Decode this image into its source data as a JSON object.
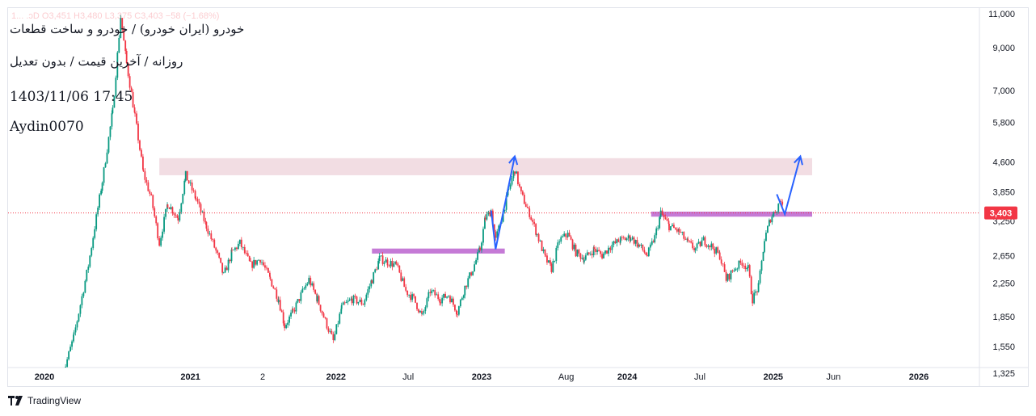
{
  "overlay": {
    "ohlc": "1... .ɔD O3,451 H3,480 L3,375 C3,403 −58 (−1.68%)",
    "title_line1": "خودرو (ایران خودرو) / خودرو و ساخت قطعات",
    "title_line2": "روزانه / آخرین قیمت / بدون تعدیل",
    "date_stamp": "1403/11/06 17:45",
    "author": "Aydin0070"
  },
  "branding": {
    "label": "TradingView"
  },
  "chart_data": {
    "type": "candlestick",
    "title": "خودرو (ایران خودرو) / خودرو و ساخت قطعات",
    "price_scale": "log",
    "y_ticks": [
      11000,
      9000,
      7000,
      5800,
      4600,
      3850,
      3250,
      2650,
      2250,
      1850,
      1550,
      1325
    ],
    "y_tick_labels": [
      "11,000",
      "9,000",
      "7,000",
      "5,800",
      "4,600",
      "3,850",
      "3,250",
      "2,650",
      "2,250",
      "1,850",
      "1,550",
      "1,325"
    ],
    "x_ticks": [
      {
        "label": "2020",
        "bold": true,
        "date": "2020-01-01"
      },
      {
        "label": "2021",
        "bold": true,
        "date": "2021-01-01"
      },
      {
        "label": "2",
        "bold": false,
        "date": "2021-07-01"
      },
      {
        "label": "2022",
        "bold": true,
        "date": "2022-01-01"
      },
      {
        "label": "Jul",
        "bold": false,
        "date": "2022-07-01"
      },
      {
        "label": "2023",
        "bold": true,
        "date": "2023-01-01"
      },
      {
        "label": "Aug",
        "bold": false,
        "date": "2023-08-01"
      },
      {
        "label": "2024",
        "bold": true,
        "date": "2024-01-01"
      },
      {
        "label": "Jul",
        "bold": false,
        "date": "2024-07-01"
      },
      {
        "label": "2025",
        "bold": true,
        "date": "2025-01-01"
      },
      {
        "label": "Jun",
        "bold": false,
        "date": "2025-06-01"
      },
      {
        "label": "2026",
        "bold": true,
        "date": "2026-01-01"
      }
    ],
    "last_price": 3403,
    "last_price_label": "3,403",
    "price_path": [
      [
        "2020-02-15",
        1300
      ],
      [
        "2020-03-15",
        1650
      ],
      [
        "2020-04-20",
        2500
      ],
      [
        "2020-05-25",
        4100
      ],
      [
        "2020-06-20",
        6200
      ],
      [
        "2020-07-10",
        10800
      ],
      [
        "2020-07-25",
        8200
      ],
      [
        "2020-08-15",
        6000
      ],
      [
        "2020-09-05",
        4300
      ],
      [
        "2020-09-25",
        3700
      ],
      [
        "2020-10-15",
        2850
      ],
      [
        "2020-11-05",
        3600
      ],
      [
        "2020-12-01",
        3300
      ],
      [
        "2020-12-20",
        4250
      ],
      [
        "2021-01-15",
        3700
      ],
      [
        "2021-02-10",
        3150
      ],
      [
        "2021-03-10",
        2650
      ],
      [
        "2021-03-25",
        2350
      ],
      [
        "2021-04-15",
        2700
      ],
      [
        "2021-05-05",
        2850
      ],
      [
        "2021-06-01",
        2500
      ],
      [
        "2021-06-25",
        2600
      ],
      [
        "2021-07-20",
        2300
      ],
      [
        "2021-08-10",
        2050
      ],
      [
        "2021-08-25",
        1750
      ],
      [
        "2021-09-15",
        1900
      ],
      [
        "2021-10-05",
        2100
      ],
      [
        "2021-10-25",
        2300
      ],
      [
        "2021-11-15",
        2050
      ],
      [
        "2021-12-05",
        1800
      ],
      [
        "2021-12-25",
        1600
      ],
      [
        "2022-01-15",
        1950
      ],
      [
        "2022-02-10",
        2050
      ],
      [
        "2022-03-10",
        2000
      ],
      [
        "2022-04-01",
        2300
      ],
      [
        "2022-04-20",
        2600
      ],
      [
        "2022-05-10",
        2550
      ],
      [
        "2022-06-01",
        2500
      ],
      [
        "2022-06-25",
        2150
      ],
      [
        "2022-07-15",
        2050
      ],
      [
        "2022-08-05",
        1850
      ],
      [
        "2022-08-25",
        2150
      ],
      [
        "2022-09-20",
        2050
      ],
      [
        "2022-10-10",
        2100
      ],
      [
        "2022-11-01",
        1900
      ],
      [
        "2022-11-20",
        2200
      ],
      [
        "2022-12-10",
        2450
      ],
      [
        "2022-12-28",
        2750
      ],
      [
        "2023-01-10",
        3300
      ],
      [
        "2023-01-25",
        3450
      ],
      [
        "2023-02-05",
        2900
      ],
      [
        "2023-02-20",
        3300
      ],
      [
        "2023-03-10",
        3900
      ],
      [
        "2023-03-25",
        4400
      ],
      [
        "2023-04-10",
        3800
      ],
      [
        "2023-05-01",
        3400
      ],
      [
        "2023-05-20",
        3000
      ],
      [
        "2023-06-10",
        2600
      ],
      [
        "2023-06-25",
        2450
      ],
      [
        "2023-07-15",
        2900
      ],
      [
        "2023-08-05",
        3000
      ],
      [
        "2023-08-25",
        2700
      ],
      [
        "2023-09-15",
        2600
      ],
      [
        "2023-10-10",
        2750
      ],
      [
        "2023-10-30",
        2650
      ],
      [
        "2023-11-20",
        2800
      ],
      [
        "2023-12-15",
        2900
      ],
      [
        "2024-01-10",
        2950
      ],
      [
        "2024-02-01",
        2800
      ],
      [
        "2024-02-20",
        2650
      ],
      [
        "2024-03-10",
        2950
      ],
      [
        "2024-03-25",
        3400
      ],
      [
        "2024-04-15",
        3150
      ],
      [
        "2024-05-10",
        3050
      ],
      [
        "2024-06-01",
        2850
      ],
      [
        "2024-06-20",
        2750
      ],
      [
        "2024-07-10",
        2900
      ],
      [
        "2024-07-30",
        2800
      ],
      [
        "2024-08-20",
        2650
      ],
      [
        "2024-09-05",
        2300
      ],
      [
        "2024-09-25",
        2450
      ],
      [
        "2024-10-15",
        2550
      ],
      [
        "2024-10-30",
        2450
      ],
      [
        "2024-11-10",
        2050
      ],
      [
        "2024-11-25",
        2200
      ],
      [
        "2024-12-10",
        2900
      ],
      [
        "2024-12-25",
        3300
      ],
      [
        "2025-01-10",
        3500
      ],
      [
        "2025-01-20",
        3700
      ],
      [
        "2025-01-26",
        3403
      ]
    ],
    "zones": [
      {
        "name": "resistance-zone",
        "from": "2020-10-15",
        "to": "2026-04-01",
        "low": 4250,
        "high": 4700,
        "color": "#f2dde3"
      },
      {
        "name": "support-2022",
        "from": "2022-04-01",
        "to": "2023-02-28",
        "low": 2680,
        "high": 2760,
        "color": "#c57ad6"
      },
      {
        "name": "support-2024",
        "from": "2024-03-01",
        "to": "2025-04-15",
        "low": 3330,
        "high": 3430,
        "color": "#c57ad6"
      }
    ],
    "drawings": [
      {
        "name": "projection-2023",
        "color": "#2962ff",
        "points": [
          [
            "2023-01-25",
            3450
          ],
          [
            "2023-02-05",
            2750
          ],
          [
            "2023-03-25",
            4750
          ]
        ]
      },
      {
        "name": "projection-2025",
        "color": "#2962ff",
        "points": [
          [
            "2025-01-10",
            3800
          ],
          [
            "2025-01-30",
            3380
          ],
          [
            "2025-03-10",
            4750
          ]
        ]
      }
    ]
  }
}
